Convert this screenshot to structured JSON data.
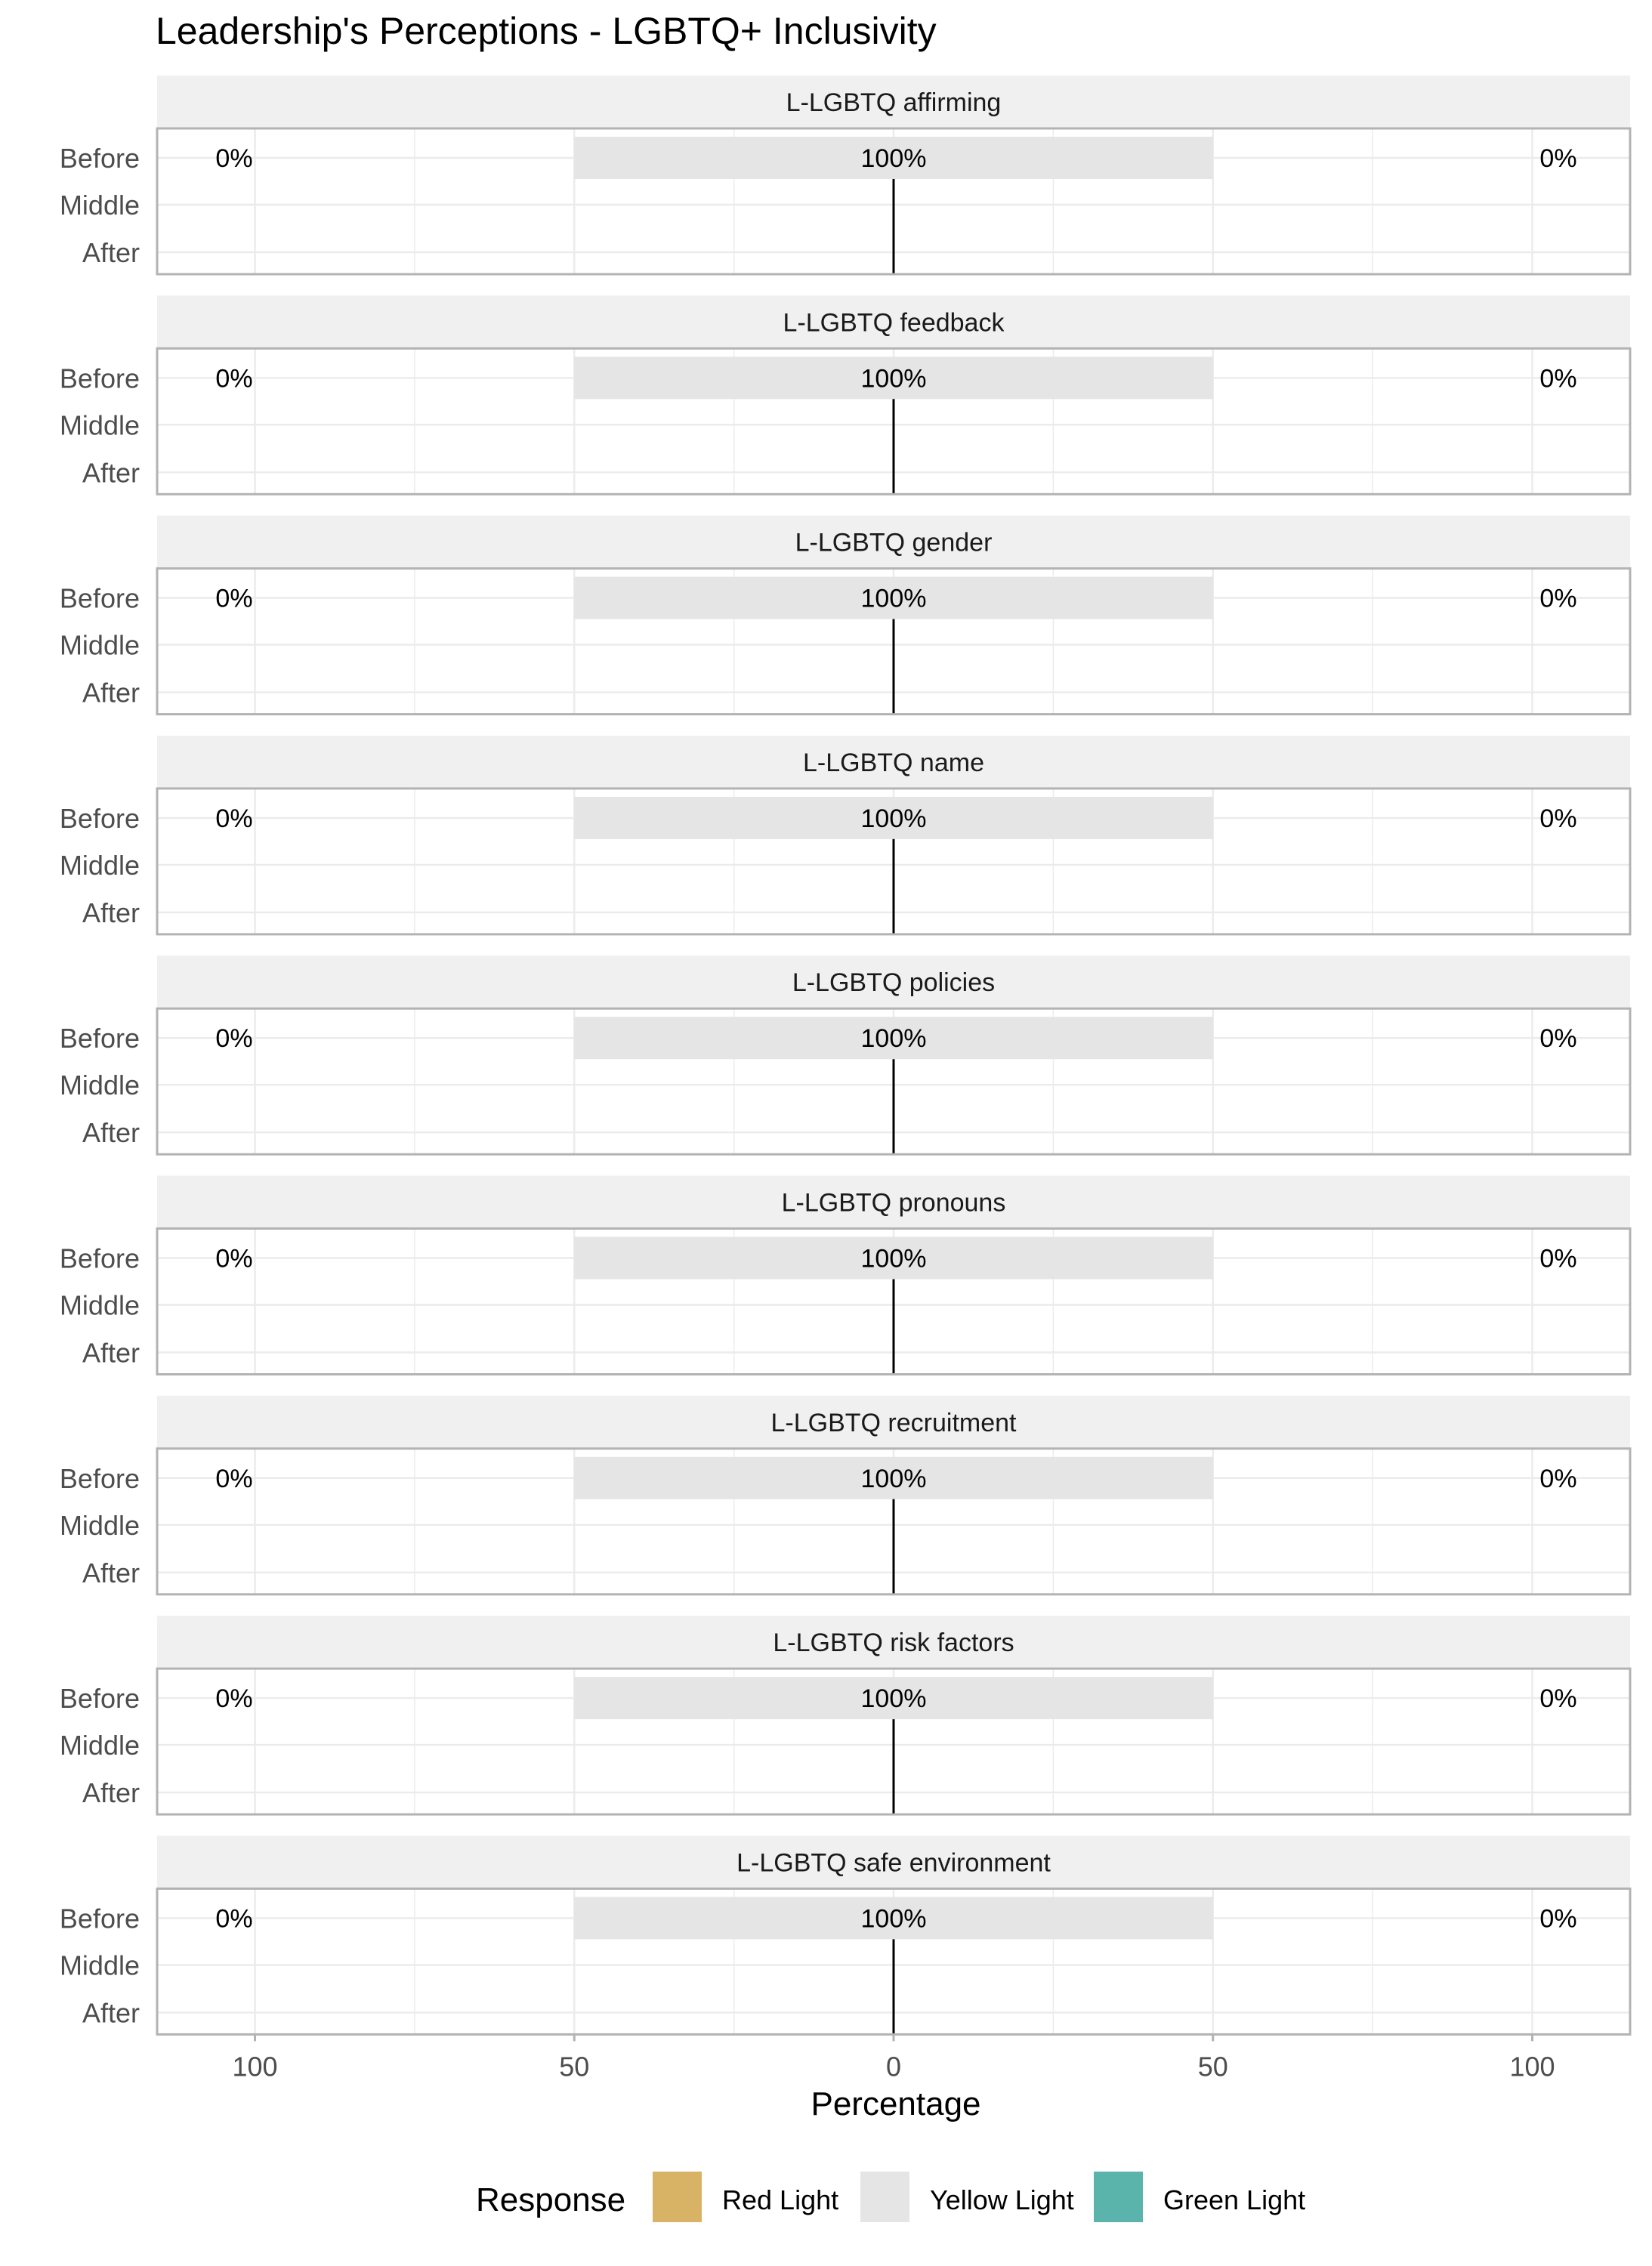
{
  "chart_data": {
    "type": "bar",
    "orientation": "horizontal",
    "layout": "faceted-diverging-stacked",
    "title": "Leadership's Perceptions - LGBTQ+ Inclusivity",
    "xlabel": "Percentage",
    "ylabel": "",
    "xlim": [
      -115,
      115
    ],
    "x_ticks": [
      -100,
      -50,
      0,
      50,
      100
    ],
    "x_tick_labels": [
      "100",
      "50",
      "0",
      "50",
      "100"
    ],
    "grid": true,
    "rows": [
      "Before",
      "Middle",
      "After"
    ],
    "legend": {
      "title": "Response",
      "placement": "bottom",
      "entries": [
        {
          "name": "Red Light",
          "color": "#D9B365"
        },
        {
          "name": "Yellow Light",
          "color": "#E5E5E5"
        },
        {
          "name": "Green Light",
          "color": "#5AB4AC"
        }
      ]
    },
    "facets": [
      {
        "name": "L-LGBTQ affirming",
        "rows": [
          {
            "row": "Before",
            "values": [
              {
                "series": "Red Light",
                "value": 0
              },
              {
                "series": "Yellow Light",
                "value": 100
              },
              {
                "series": "Green Light",
                "value": 0
              }
            ],
            "labels": {
              "left": "0%",
              "center": "100%",
              "right": "0%"
            }
          }
        ]
      },
      {
        "name": "L-LGBTQ feedback",
        "rows": [
          {
            "row": "Before",
            "values": [
              {
                "series": "Red Light",
                "value": 0
              },
              {
                "series": "Yellow Light",
                "value": 100
              },
              {
                "series": "Green Light",
                "value": 0
              }
            ],
            "labels": {
              "left": "0%",
              "center": "100%",
              "right": "0%"
            }
          }
        ]
      },
      {
        "name": "L-LGBTQ gender",
        "rows": [
          {
            "row": "Before",
            "values": [
              {
                "series": "Red Light",
                "value": 0
              },
              {
                "series": "Yellow Light",
                "value": 100
              },
              {
                "series": "Green Light",
                "value": 0
              }
            ],
            "labels": {
              "left": "0%",
              "center": "100%",
              "right": "0%"
            }
          }
        ]
      },
      {
        "name": "L-LGBTQ name",
        "rows": [
          {
            "row": "Before",
            "values": [
              {
                "series": "Red Light",
                "value": 0
              },
              {
                "series": "Yellow Light",
                "value": 100
              },
              {
                "series": "Green Light",
                "value": 0
              }
            ],
            "labels": {
              "left": "0%",
              "center": "100%",
              "right": "0%"
            }
          }
        ]
      },
      {
        "name": "L-LGBTQ policies",
        "rows": [
          {
            "row": "Before",
            "values": [
              {
                "series": "Red Light",
                "value": 0
              },
              {
                "series": "Yellow Light",
                "value": 100
              },
              {
                "series": "Green Light",
                "value": 0
              }
            ],
            "labels": {
              "left": "0%",
              "center": "100%",
              "right": "0%"
            }
          }
        ]
      },
      {
        "name": "L-LGBTQ pronouns",
        "rows": [
          {
            "row": "Before",
            "values": [
              {
                "series": "Red Light",
                "value": 0
              },
              {
                "series": "Yellow Light",
                "value": 100
              },
              {
                "series": "Green Light",
                "value": 0
              }
            ],
            "labels": {
              "left": "0%",
              "center": "100%",
              "right": "0%"
            }
          }
        ]
      },
      {
        "name": "L-LGBTQ recruitment",
        "rows": [
          {
            "row": "Before",
            "values": [
              {
                "series": "Red Light",
                "value": 0
              },
              {
                "series": "Yellow Light",
                "value": 100
              },
              {
                "series": "Green Light",
                "value": 0
              }
            ],
            "labels": {
              "left": "0%",
              "center": "100%",
              "right": "0%"
            }
          }
        ]
      },
      {
        "name": "L-LGBTQ risk factors",
        "rows": [
          {
            "row": "Before",
            "values": [
              {
                "series": "Red Light",
                "value": 0
              },
              {
                "series": "Yellow Light",
                "value": 100
              },
              {
                "series": "Green Light",
                "value": 0
              }
            ],
            "labels": {
              "left": "0%",
              "center": "100%",
              "right": "0%"
            }
          }
        ]
      },
      {
        "name": "L-LGBTQ safe environment",
        "rows": [
          {
            "row": "Before",
            "values": [
              {
                "series": "Red Light",
                "value": 0
              },
              {
                "series": "Yellow Light",
                "value": 100
              },
              {
                "series": "Green Light",
                "value": 0
              }
            ],
            "labels": {
              "left": "0%",
              "center": "100%",
              "right": "0%"
            }
          }
        ]
      }
    ]
  }
}
